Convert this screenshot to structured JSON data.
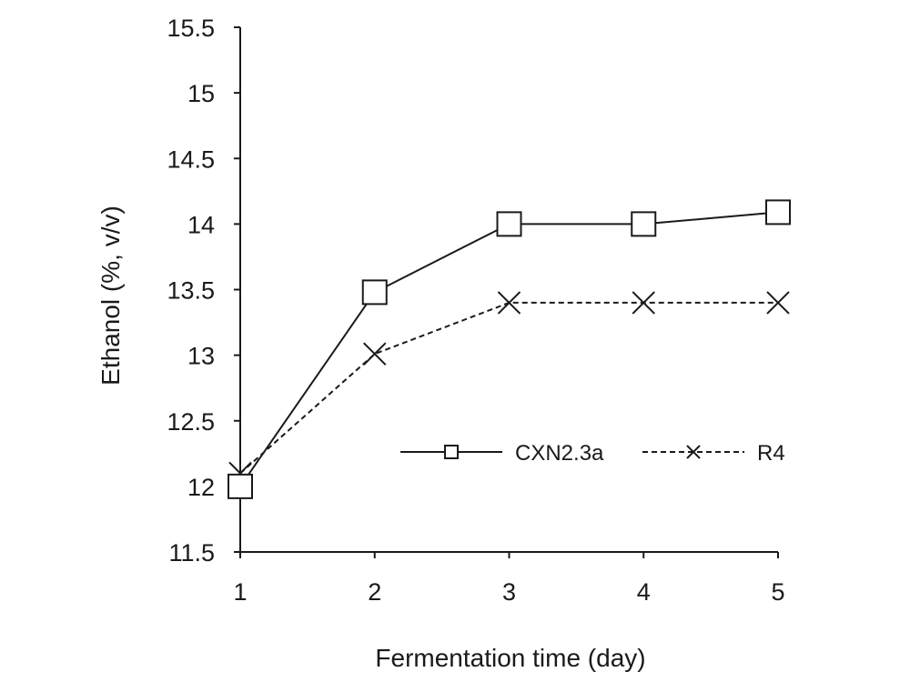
{
  "chart_data": {
    "type": "line",
    "title": "",
    "xlabel": "Fermentation time (day)",
    "ylabel": "Ethanol (%, v/v)",
    "x": [
      1,
      2,
      3,
      4,
      5
    ],
    "x_tick_labels": [
      "1",
      "2",
      "3",
      "4",
      "5"
    ],
    "y_tick_labels": [
      "11.5",
      "12",
      "12.5",
      "13",
      "13.5",
      "14",
      "14.5",
      "15",
      "15.5"
    ],
    "ylim": [
      11.5,
      15.5
    ],
    "xlim": [
      1,
      5
    ],
    "grid": false,
    "legend_position": "right, inside plot area",
    "series": [
      {
        "name": "CXN2.3a",
        "values": [
          12.0,
          13.48,
          14.0,
          14.0,
          14.09
        ],
        "marker": "square",
        "line_style": "solid",
        "color": "#1a1a1a"
      },
      {
        "name": "R4",
        "values": [
          12.1,
          13.01,
          13.4,
          13.4,
          13.4
        ],
        "marker": "x",
        "line_style": "dashed",
        "color": "#1a1a1a"
      }
    ]
  }
}
